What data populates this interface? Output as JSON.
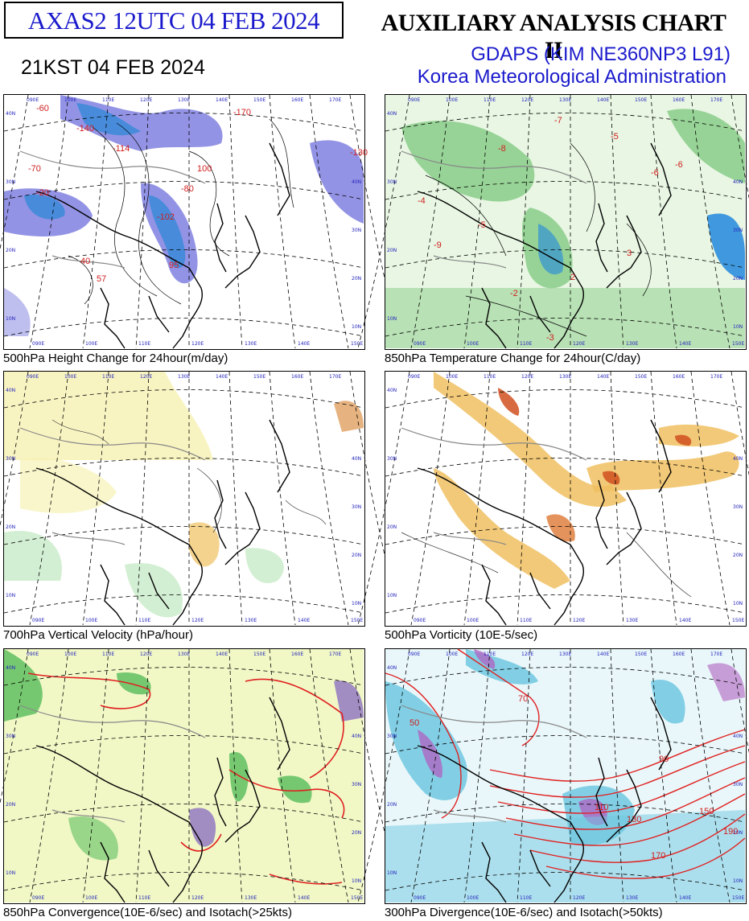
{
  "header": {
    "chart_id": "AXAS2  12UTC 04 FEB 2024",
    "local_time": "21KST 04 FEB 2024",
    "title": "AUXILIARY ANALYSIS CHART II",
    "model": "GDAPS (KIM NE360NP3 L91)",
    "agency": "Korea Meteorological Administration"
  },
  "grid_labels": {
    "lon_top": [
      "090E",
      "100E",
      "110E",
      "120E",
      "130E",
      "140E",
      "150E",
      "160E",
      "170E"
    ],
    "lon_bottom": [
      "090E",
      "100E",
      "110E",
      "120E",
      "130E",
      "140E",
      "150E"
    ],
    "lat_left": [
      "40N",
      "30N",
      "20N",
      "10N"
    ],
    "lat_right": [
      "40N",
      "30N",
      "20N",
      "10N"
    ]
  },
  "colors": {
    "header_blue": "#1a1acc",
    "height_fall": "#8080e0",
    "height_fall_strong": "#3a8ad8",
    "temp_fall": "#88cc88",
    "temp_fall_strong": "#2288dd",
    "vv_ascent": "#f5f0a8",
    "vv_descent": "#a8e0a8",
    "vorticity_pos": "#f0c060",
    "vorticity_strong": "#d05020",
    "conv_green": "#60c060",
    "conv_yellow": "#e0f080",
    "div_cyan": "#70c8e0",
    "div_purple": "#b060c0",
    "isotach_red": "#e02020"
  },
  "panels": [
    {
      "caption": "500hPa Height Change for 24hour(m/day)",
      "values": [
        "-60",
        "-140",
        "-114",
        "-170",
        "-20",
        "-102",
        "95",
        "57",
        "40",
        "-70",
        "-80",
        "100",
        "-130"
      ]
    },
    {
      "caption": "850hPa Temperature Change for 24hour(C/day)",
      "values": [
        "-8",
        "-5",
        "-2",
        "-3",
        "-6",
        "-4",
        "-7",
        "3",
        "-9",
        "-6",
        "-5",
        "2"
      ]
    },
    {
      "caption": "700hPa Vertical Velocity (hPa/hour)",
      "values": []
    },
    {
      "caption": "500hPa Vorticity (10E-5/sec)",
      "values": []
    },
    {
      "caption": "850hPa Convergence(10E-6/sec) and Isotach(>25kts)",
      "values": []
    },
    {
      "caption": "300hPa Divergence(10E-6/sec) and Isotach(>50kts)",
      "values": [
        "50",
        "70",
        "90",
        "110",
        "130",
        "150",
        "170",
        "190"
      ]
    }
  ]
}
